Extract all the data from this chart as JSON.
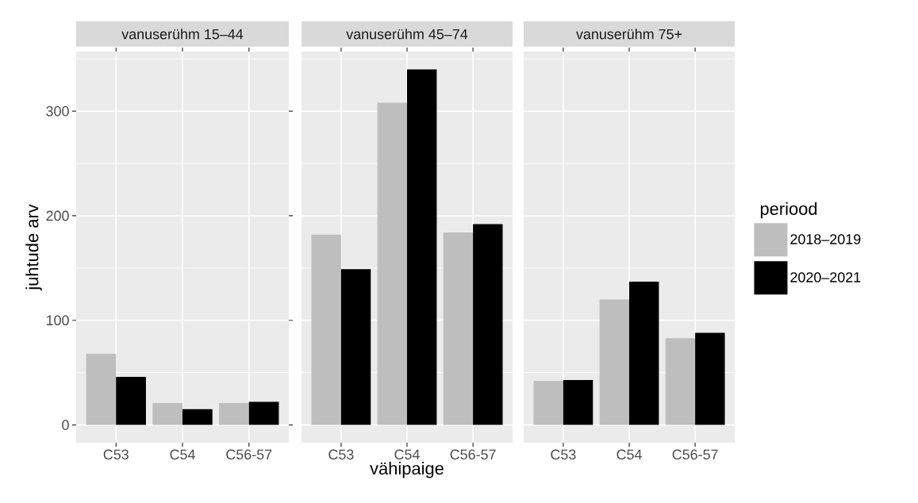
{
  "chart_data": [
    {
      "type": "bar",
      "title": "vanuserühm 15–44",
      "categories": [
        "C53",
        "C54",
        "C56-57"
      ],
      "ylabel": "juhtude arv",
      "ylim": [
        -17,
        357
      ],
      "yticks": [
        0,
        100,
        200,
        300
      ],
      "grid": true,
      "series": [
        {
          "color": "#bebebe",
          "values": [
            68,
            21,
            21
          ]
        },
        {
          "color": "#000000",
          "values": [
            46,
            15,
            22
          ]
        }
      ]
    },
    {
      "type": "bar",
      "title": "vanuserühm 45–74",
      "categories": [
        "C53",
        "C54",
        "C56-57"
      ],
      "xlabel": "vähipaige",
      "ylim": [
        -17,
        357
      ],
      "yticks": [
        0,
        100,
        200,
        300
      ],
      "grid": true,
      "tick_labels": "x",
      "series": [
        {
          "color": "#bebebe",
          "values": [
            182,
            308,
            184
          ]
        },
        {
          "color": "#000000",
          "values": [
            149,
            340,
            192
          ]
        }
      ]
    },
    {
      "type": "bar",
      "title": "vanuserühm 75+",
      "categories": [
        "C53",
        "C54",
        "C56-57"
      ],
      "ylim": [
        -17,
        357
      ],
      "yticks": [
        0,
        100,
        200,
        300
      ],
      "grid": true,
      "tick_labels": "x",
      "legend": "right",
      "legend_title": "periood",
      "series": [
        {
          "name": "2018–2019",
          "color": "#bebebe",
          "values": [
            42,
            120,
            83
          ]
        },
        {
          "name": "2020–2021",
          "color": "#000000",
          "values": [
            43,
            137,
            88
          ]
        }
      ]
    }
  ]
}
